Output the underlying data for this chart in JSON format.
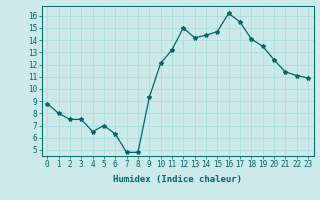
{
  "x": [
    0,
    1,
    2,
    3,
    4,
    5,
    6,
    7,
    8,
    9,
    10,
    11,
    12,
    13,
    14,
    15,
    16,
    17,
    18,
    19,
    20,
    21,
    22,
    23
  ],
  "y": [
    8.8,
    8.0,
    7.5,
    7.5,
    6.5,
    7.0,
    6.3,
    4.8,
    4.8,
    9.3,
    12.1,
    13.2,
    15.0,
    14.2,
    14.4,
    14.7,
    16.2,
    15.5,
    14.1,
    13.5,
    12.4,
    11.4,
    11.1,
    10.9
  ],
  "line_color": "#006666",
  "marker": "*",
  "marker_size": 3,
  "bg_color": "#cceaea",
  "grid_color": "#aadddd",
  "xlabel": "Humidex (Indice chaleur)",
  "ylim": [
    4.5,
    16.8
  ],
  "xlim": [
    -0.5,
    23.5
  ],
  "yticks": [
    5,
    6,
    7,
    8,
    9,
    10,
    11,
    12,
    13,
    14,
    15,
    16
  ],
  "xticks": [
    0,
    1,
    2,
    3,
    4,
    5,
    6,
    7,
    8,
    9,
    10,
    11,
    12,
    13,
    14,
    15,
    16,
    17,
    18,
    19,
    20,
    21,
    22,
    23
  ],
  "tick_color": "#006666",
  "label_color": "#006666",
  "tick_fontsize": 5.5,
  "xlabel_fontsize": 6.5,
  "linewidth": 0.9
}
